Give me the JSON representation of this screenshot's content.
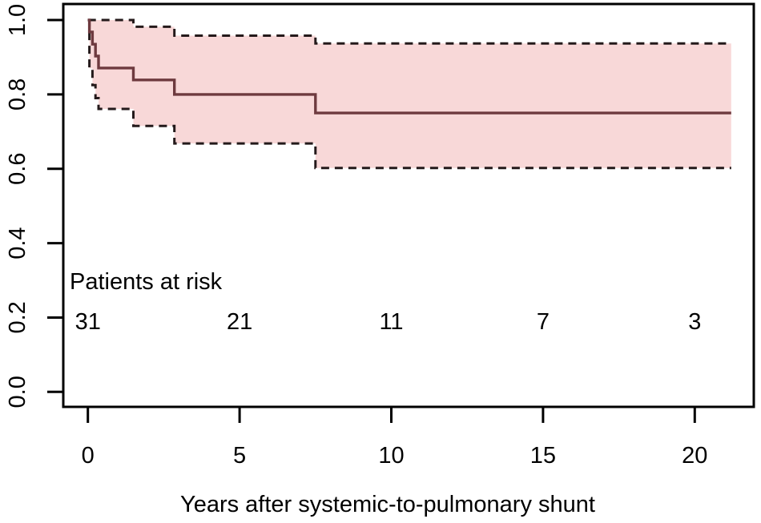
{
  "chart_data": {
    "type": "line",
    "chart_kind": "kaplan_meier_survival_with_ci_band",
    "title": "",
    "xlabel": "Years after systemic-to-pulmonary shunt",
    "ylabel": "",
    "x_tick_values": [
      0,
      5,
      10,
      15,
      20
    ],
    "x_tick_labels": [
      "0",
      "5",
      "10",
      "15",
      "20"
    ],
    "y_tick_values": [
      0.0,
      0.2,
      0.4,
      0.6,
      0.8,
      1.0
    ],
    "y_tick_labels": [
      "0.0",
      "0.2",
      "0.4",
      "0.6",
      "0.8",
      "1.0"
    ],
    "xlim": [
      -0.8,
      21.9
    ],
    "ylim": [
      -0.04,
      1.04
    ],
    "grid": false,
    "legend": false,
    "follow_up_end_years": 21.2,
    "series": [
      {
        "name": "survival-estimate",
        "role": "estimate",
        "line_style": "solid",
        "color": "#6e3a3f",
        "steps": [
          [
            0,
            1.0
          ],
          [
            0.05,
            0.968
          ],
          [
            0.15,
            0.935
          ],
          [
            0.25,
            0.903
          ],
          [
            0.35,
            0.871
          ],
          [
            1.5,
            0.839
          ],
          [
            2.85,
            0.8
          ],
          [
            7.5,
            0.75
          ]
        ]
      },
      {
        "name": "upper-95-ci",
        "role": "ci-upper",
        "line_style": "dashed",
        "color": "#241a1b",
        "steps": [
          [
            0,
            1.0
          ],
          [
            1.5,
            0.982
          ],
          [
            2.85,
            0.958
          ],
          [
            7.5,
            0.937
          ]
        ]
      },
      {
        "name": "lower-95-ci",
        "role": "ci-lower",
        "line_style": "dashed",
        "color": "#241a1b",
        "steps": [
          [
            0,
            1.0
          ],
          [
            0.05,
            0.87
          ],
          [
            0.15,
            0.825
          ],
          [
            0.25,
            0.79
          ],
          [
            0.35,
            0.761
          ],
          [
            1.5,
            0.715
          ],
          [
            2.85,
            0.668
          ],
          [
            7.5,
            0.602
          ]
        ]
      }
    ],
    "ci_band_fill": "#f8d8d8",
    "axis_color": "#000000",
    "at_risk": {
      "label": "Patients at risk",
      "times": [
        0,
        5,
        10,
        15,
        20
      ],
      "counts": [
        "31",
        "21",
        "11",
        "7",
        "3"
      ]
    }
  }
}
